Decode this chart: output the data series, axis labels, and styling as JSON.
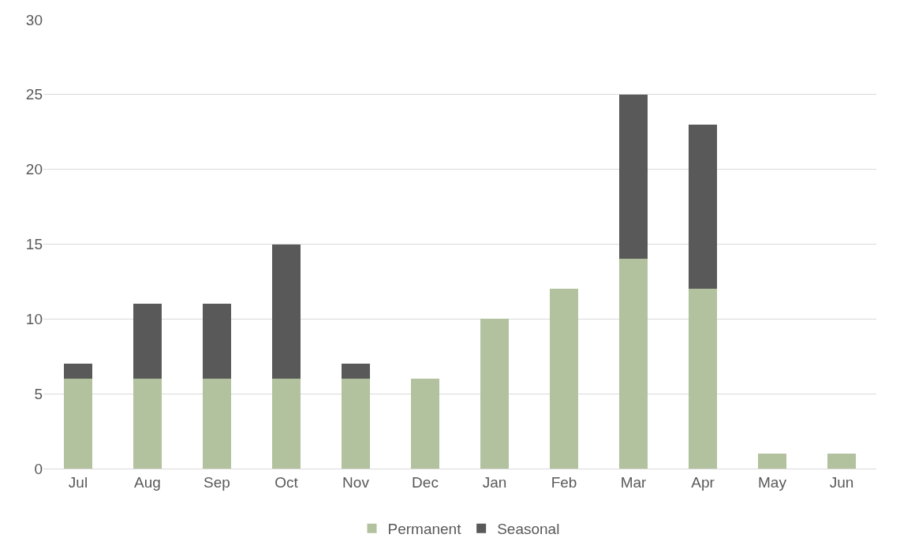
{
  "chart_data": {
    "type": "bar",
    "stacked": true,
    "categories": [
      "Jul",
      "Aug",
      "Sep",
      "Oct",
      "Nov",
      "Dec",
      "Jan",
      "Feb",
      "Mar",
      "Apr",
      "May",
      "Jun"
    ],
    "series": [
      {
        "name": "Permanent",
        "color": "#b2c19e",
        "values": [
          6,
          6,
          6,
          6,
          6,
          6,
          10,
          12,
          14,
          12,
          1,
          1
        ]
      },
      {
        "name": "Seasonal",
        "color": "#595959",
        "values": [
          1,
          5,
          5,
          9,
          1,
          null,
          null,
          null,
          11,
          11,
          null,
          null
        ]
      }
    ],
    "ylim": [
      0,
      30
    ],
    "yticks": [
      0,
      5,
      10,
      15,
      20,
      25,
      30
    ],
    "grid": "y",
    "legend": "bottom"
  }
}
